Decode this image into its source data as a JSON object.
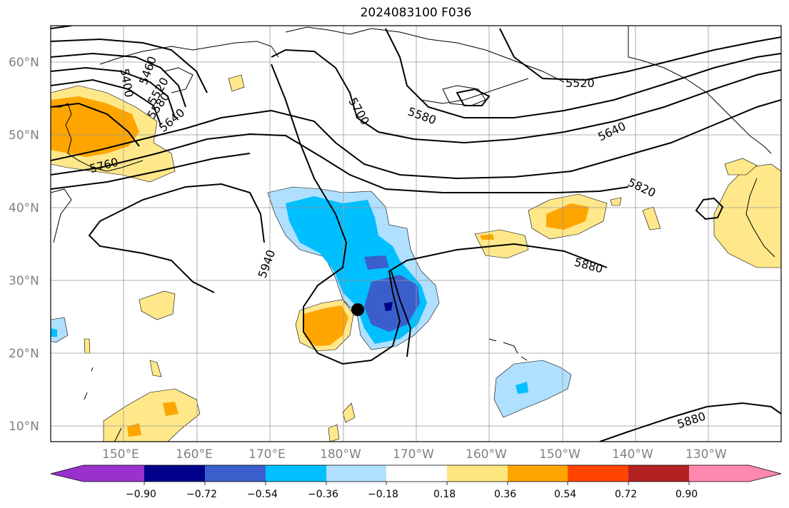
{
  "title": "2024083100 F036",
  "lat_labels": [
    "60°N",
    "50°N",
    "40°N",
    "30°N",
    "20°N",
    "10°N"
  ],
  "lon_labels": [
    "150°E",
    "160°E",
    "170°E",
    "180°W",
    "170°W",
    "160°W",
    "150°W",
    "140°W",
    "130°W"
  ],
  "contour_labels": [
    "5400",
    "5460",
    "5520",
    "5580",
    "5640",
    "5760",
    "5700",
    "5580",
    "5520",
    "5640",
    "5820",
    "5880",
    "5940",
    "5880"
  ],
  "colorbar": {
    "ticks": [
      "−0.90",
      "−0.72",
      "−0.54",
      "−0.36",
      "−0.18",
      "0.18",
      "0.36",
      "0.54",
      "0.72",
      "0.90"
    ],
    "colors": [
      "#9932cc",
      "#00008b",
      "#3a5fcd",
      "#00bfff",
      "#b0e0ff",
      "#ffffff",
      "#ffe680",
      "#ffa500",
      "#ff4500",
      "#b22222",
      "#ff88b0"
    ]
  },
  "colors": {
    "light_yellow": "#ffe88a",
    "orange": "#ffa500",
    "light_blue": "#b0e0ff",
    "blue": "#00bfff",
    "mid_blue": "#3a5fcd",
    "navy": "#00008b",
    "gray_text": "#808080"
  }
}
